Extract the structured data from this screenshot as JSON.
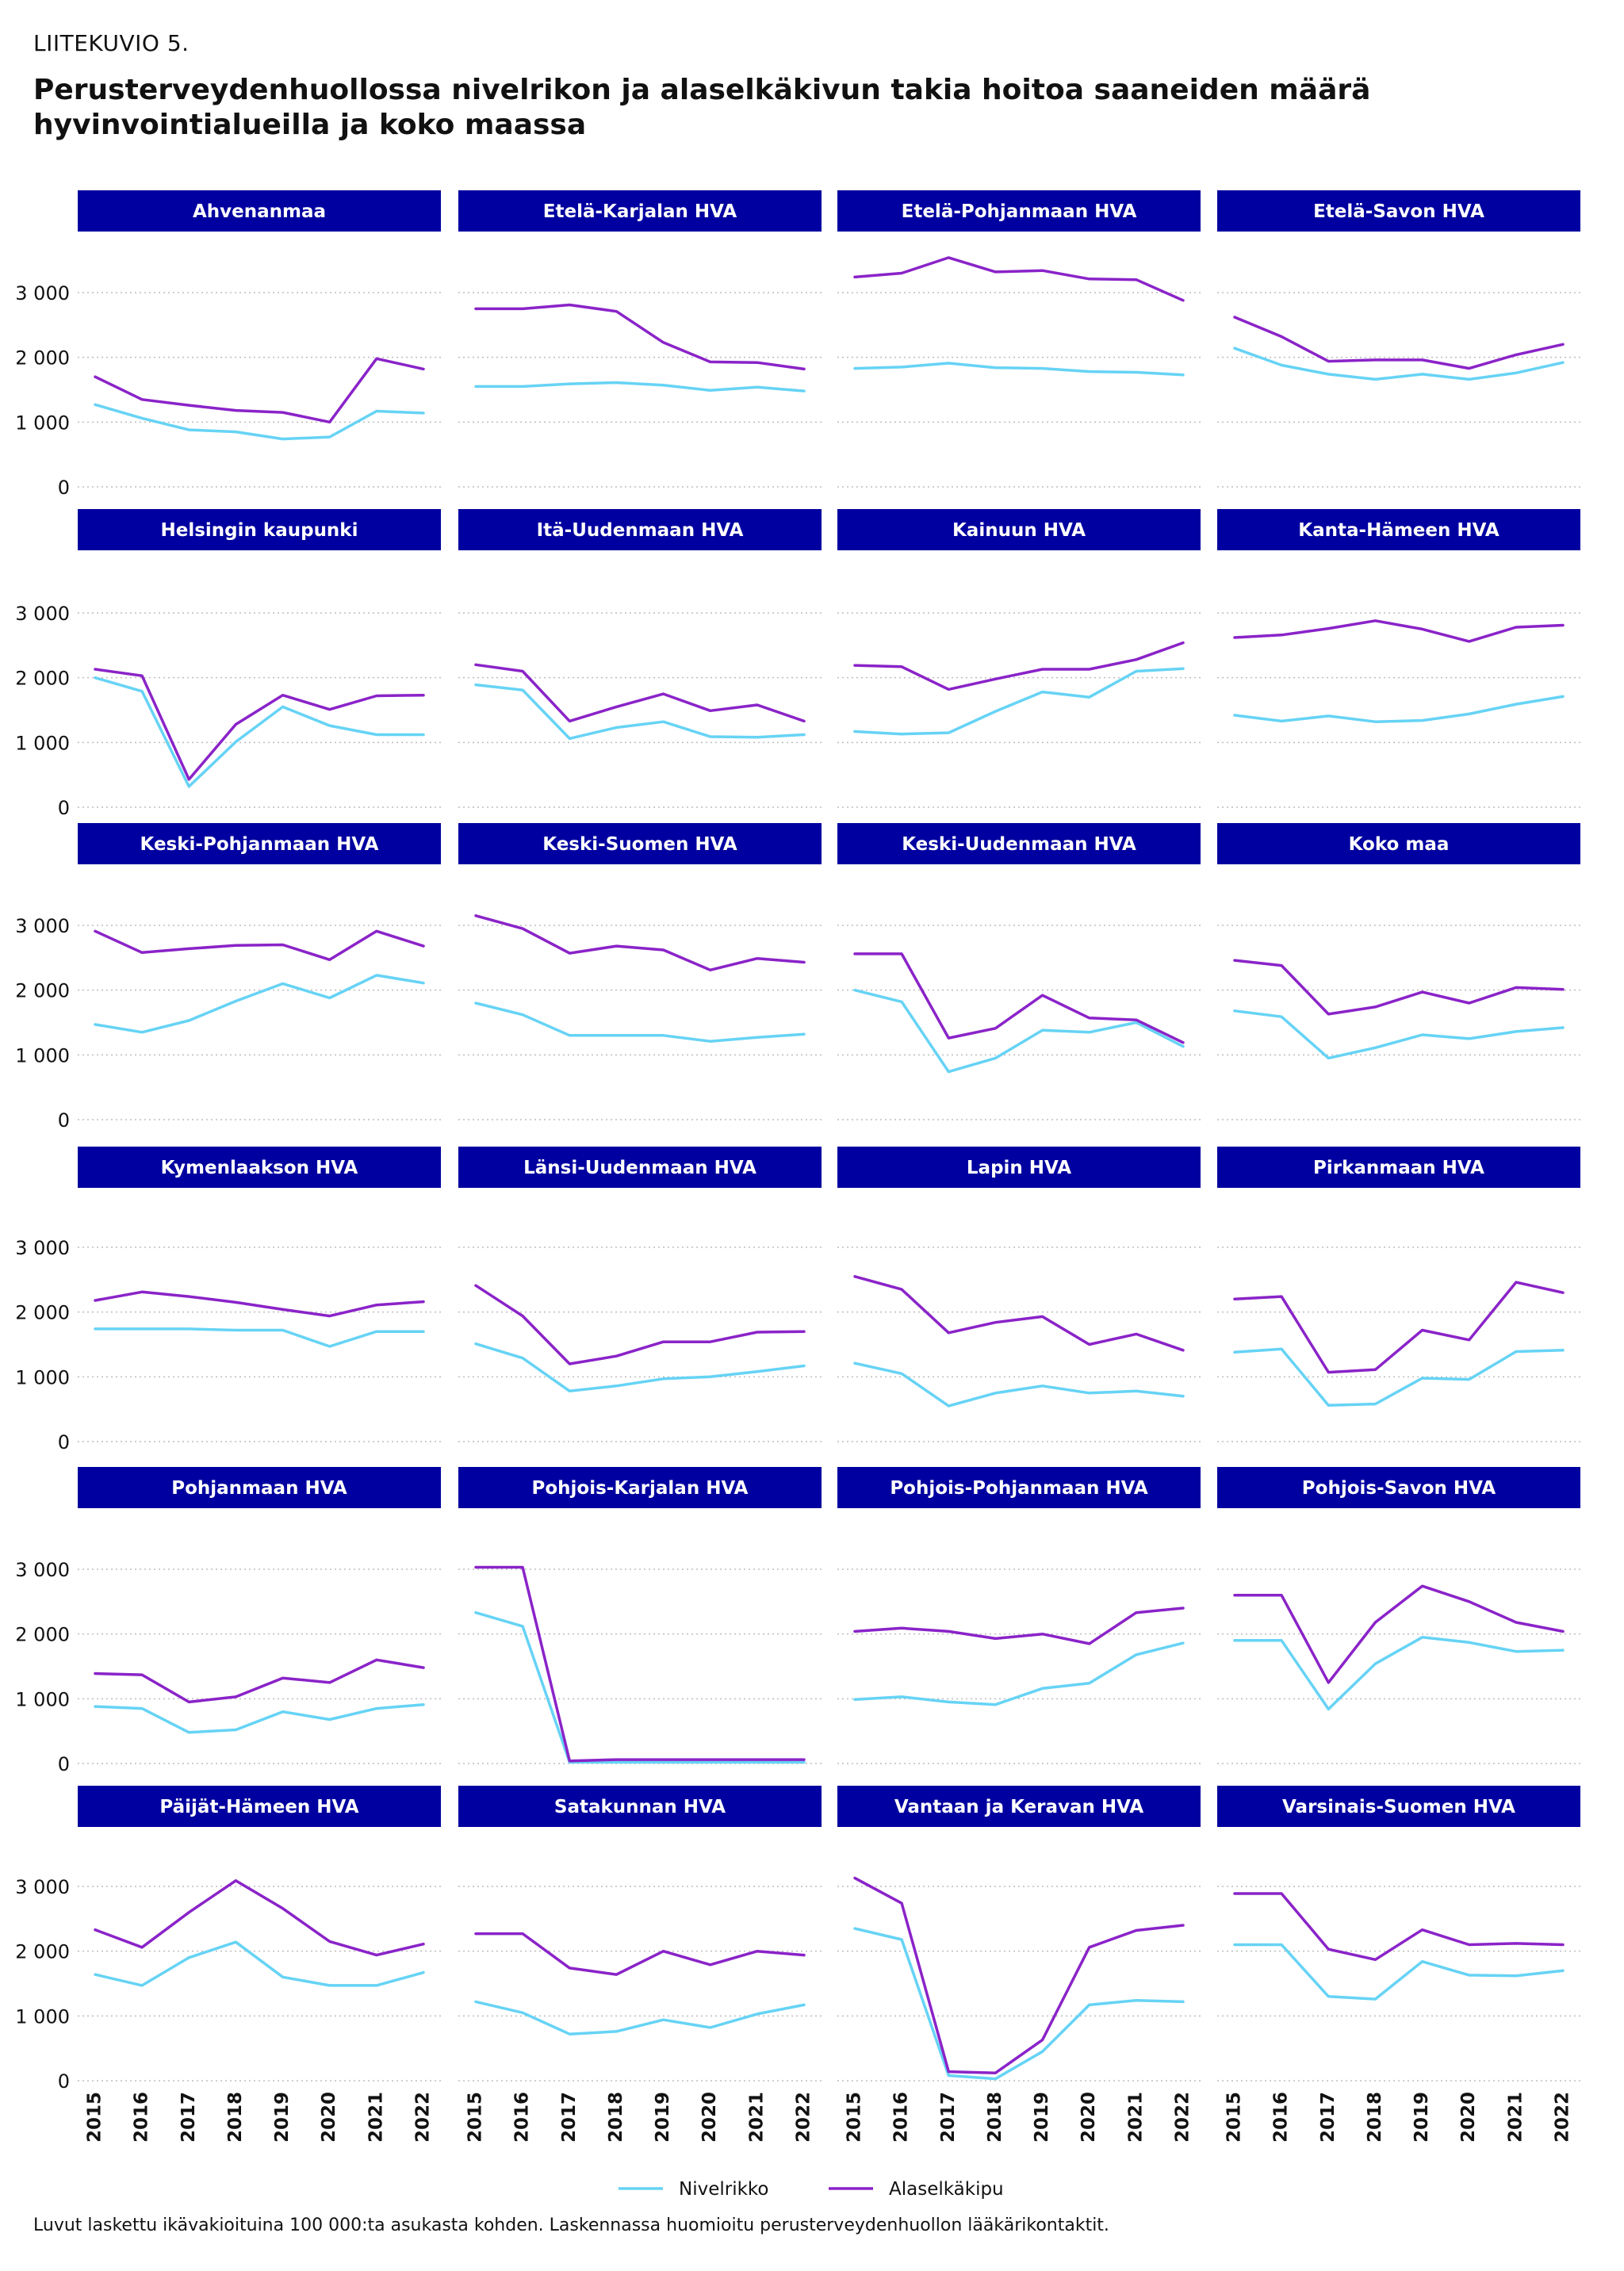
{
  "header": {
    "label": "LIITEKUVIO 5.",
    "title": "Perusterveydenhuollossa nivelrikon ja alaselkäkivun takia hoitoa saaneiden määrä hyvinvointialueilla ja koko maassa"
  },
  "footer": {
    "note": "Luvut laskettu ikävakioituina 100 000:ta asukasta kohden. Laskennassa huomioitu perusterveydenhuollon lääkärikontaktit."
  },
  "colors": {
    "panel_header_bg": "#0000A0",
    "panel_header_text": "#ffffff",
    "nivelrikko": "#66D3F5",
    "alaselkakipu": "#8A23C8",
    "grid": "#bdbdbd"
  },
  "chart_data": {
    "type": "line",
    "layout": "small-multiples",
    "x": [
      "2015",
      "2016",
      "2017",
      "2018",
      "2019",
      "2020",
      "2021",
      "2022"
    ],
    "ylim": [
      0,
      3000
    ],
    "yticks": [
      "0",
      "1 000",
      "2 000",
      "3 000"
    ],
    "grid": "horizontal dotted",
    "legend": {
      "position": "bottom",
      "items": [
        {
          "name": "Nivelrikko",
          "color": "#66D3F5"
        },
        {
          "name": "Alaselkäkipu",
          "color": "#8A23C8"
        }
      ]
    },
    "panels": [
      {
        "title": "Ahvenanmaa",
        "nivelrikko": [
          1270,
          1060,
          880,
          850,
          740,
          770,
          1170,
          1140
        ],
        "alaselkakipu": [
          1700,
          1350,
          1260,
          1180,
          1150,
          1000,
          1980,
          1820
        ]
      },
      {
        "title": "Etelä-Karjalan HVA",
        "nivelrikko": [
          1550,
          1550,
          1590,
          1610,
          1570,
          1490,
          1540,
          1480
        ],
        "alaselkakipu": [
          2750,
          2750,
          2810,
          2710,
          2230,
          1930,
          1920,
          1820
        ]
      },
      {
        "title": "Etelä-Pohjanmaan HVA",
        "nivelrikko": [
          1830,
          1850,
          1910,
          1840,
          1830,
          1780,
          1770,
          1730
        ],
        "alaselkakipu": [
          3240,
          3300,
          3540,
          3320,
          3340,
          3210,
          3200,
          2880
        ]
      },
      {
        "title": "Etelä-Savon HVA",
        "nivelrikko": [
          2140,
          1880,
          1740,
          1660,
          1740,
          1660,
          1760,
          1920
        ],
        "alaselkakipu": [
          2620,
          2320,
          1940,
          1960,
          1960,
          1830,
          2040,
          2200
        ]
      },
      {
        "title": "Helsingin kaupunki",
        "nivelrikko": [
          2000,
          1790,
          320,
          1010,
          1550,
          1260,
          1120,
          1120
        ],
        "alaselkakipu": [
          2130,
          2030,
          430,
          1280,
          1730,
          1510,
          1720,
          1730
        ]
      },
      {
        "title": "Itä-Uudenmaan HVA",
        "nivelrikko": [
          1890,
          1810,
          1060,
          1230,
          1320,
          1090,
          1080,
          1120
        ],
        "alaselkakipu": [
          2200,
          2100,
          1330,
          1550,
          1750,
          1490,
          1580,
          1330
        ]
      },
      {
        "title": "Kainuun HVA",
        "nivelrikko": [
          1170,
          1130,
          1150,
          1480,
          1780,
          1700,
          2100,
          2140
        ],
        "alaselkakipu": [
          2190,
          2170,
          1820,
          1980,
          2130,
          2130,
          2280,
          2540
        ]
      },
      {
        "title": "Kanta-Hämeen HVA",
        "nivelrikko": [
          1420,
          1330,
          1410,
          1320,
          1340,
          1440,
          1590,
          1710
        ],
        "alaselkakipu": [
          2620,
          2660,
          2760,
          2880,
          2750,
          2560,
          2780,
          2810
        ]
      },
      {
        "title": "Keski-Pohjanmaan HVA",
        "nivelrikko": [
          1470,
          1350,
          1530,
          1830,
          2100,
          1880,
          2230,
          2110
        ],
        "alaselkakipu": [
          2910,
          2580,
          2640,
          2690,
          2700,
          2470,
          2910,
          2680
        ]
      },
      {
        "title": "Keski-Suomen HVA",
        "nivelrikko": [
          1800,
          1620,
          1300,
          1300,
          1300,
          1210,
          1270,
          1320
        ],
        "alaselkakipu": [
          3150,
          2950,
          2570,
          2680,
          2620,
          2310,
          2490,
          2430
        ]
      },
      {
        "title": "Keski-Uudenmaan HVA",
        "nivelrikko": [
          2000,
          1820,
          740,
          950,
          1380,
          1350,
          1500,
          1130
        ],
        "alaselkakipu": [
          2560,
          2560,
          1260,
          1410,
          1920,
          1570,
          1540,
          1190
        ]
      },
      {
        "title": "Koko maa",
        "nivelrikko": [
          1680,
          1590,
          950,
          1110,
          1310,
          1250,
          1360,
          1420
        ],
        "alaselkakipu": [
          2460,
          2380,
          1630,
          1740,
          1970,
          1800,
          2040,
          2010
        ]
      },
      {
        "title": "Kymenlaakson HVA",
        "nivelrikko": [
          1740,
          1740,
          1740,
          1720,
          1720,
          1470,
          1700,
          1700
        ],
        "alaselkakipu": [
          2180,
          2310,
          2240,
          2150,
          2040,
          1940,
          2110,
          2160
        ]
      },
      {
        "title": "Länsi-Uudenmaan HVA",
        "nivelrikko": [
          1510,
          1290,
          780,
          860,
          970,
          1000,
          1080,
          1170
        ],
        "alaselkakipu": [
          2410,
          1940,
          1200,
          1320,
          1540,
          1540,
          1690,
          1700
        ]
      },
      {
        "title": "Lapin HVA",
        "nivelrikko": [
          1210,
          1050,
          550,
          750,
          860,
          750,
          780,
          700
        ],
        "alaselkakipu": [
          2550,
          2350,
          1680,
          1840,
          1930,
          1500,
          1660,
          1410
        ]
      },
      {
        "title": "Pirkanmaan HVA",
        "nivelrikko": [
          1380,
          1430,
          560,
          580,
          980,
          960,
          1390,
          1410
        ],
        "alaselkakipu": [
          2200,
          2240,
          1070,
          1110,
          1720,
          1570,
          2460,
          2300
        ]
      },
      {
        "title": "Pohjanmaan HVA",
        "nivelrikko": [
          880,
          850,
          480,
          520,
          800,
          680,
          850,
          910
        ],
        "alaselkakipu": [
          1390,
          1370,
          950,
          1030,
          1320,
          1250,
          1600,
          1480
        ]
      },
      {
        "title": "Pohjois-Karjalan HVA",
        "nivelrikko": [
          2330,
          2120,
          20,
          20,
          20,
          20,
          20,
          20
        ],
        "alaselkakipu": [
          3030,
          3030,
          40,
          60,
          60,
          60,
          60,
          60
        ]
      },
      {
        "title": "Pohjois-Pohjanmaan HVA",
        "nivelrikko": [
          990,
          1030,
          950,
          910,
          1160,
          1240,
          1680,
          1860
        ],
        "alaselkakipu": [
          2040,
          2090,
          2040,
          1930,
          2000,
          1850,
          2330,
          2400
        ]
      },
      {
        "title": "Pohjois-Savon HVA",
        "nivelrikko": [
          1900,
          1900,
          840,
          1540,
          1950,
          1870,
          1730,
          1750
        ],
        "alaselkakipu": [
          2600,
          2600,
          1250,
          2180,
          2740,
          2500,
          2180,
          2040
        ]
      },
      {
        "title": "Päijät-Hämeen HVA",
        "nivelrikko": [
          1640,
          1470,
          1900,
          2140,
          1600,
          1470,
          1470,
          1670
        ],
        "alaselkakipu": [
          2330,
          2060,
          2600,
          3090,
          2660,
          2150,
          1940,
          2110
        ]
      },
      {
        "title": "Satakunnan HVA",
        "nivelrikko": [
          1220,
          1050,
          720,
          760,
          940,
          820,
          1030,
          1170
        ],
        "alaselkakipu": [
          2270,
          2270,
          1740,
          1640,
          2000,
          1790,
          2000,
          1940
        ]
      },
      {
        "title": "Vantaan ja Keravan HVA",
        "nivelrikko": [
          2350,
          2180,
          80,
          30,
          450,
          1170,
          1240,
          1220
        ],
        "alaselkakipu": [
          3130,
          2740,
          140,
          120,
          630,
          2060,
          2320,
          2400
        ]
      },
      {
        "title": "Varsinais-Suomen HVA",
        "nivelrikko": [
          2100,
          2100,
          1300,
          1260,
          1840,
          1630,
          1620,
          1700
        ],
        "alaselkakipu": [
          2890,
          2890,
          2030,
          1870,
          2330,
          2100,
          2120,
          2100
        ]
      }
    ]
  }
}
